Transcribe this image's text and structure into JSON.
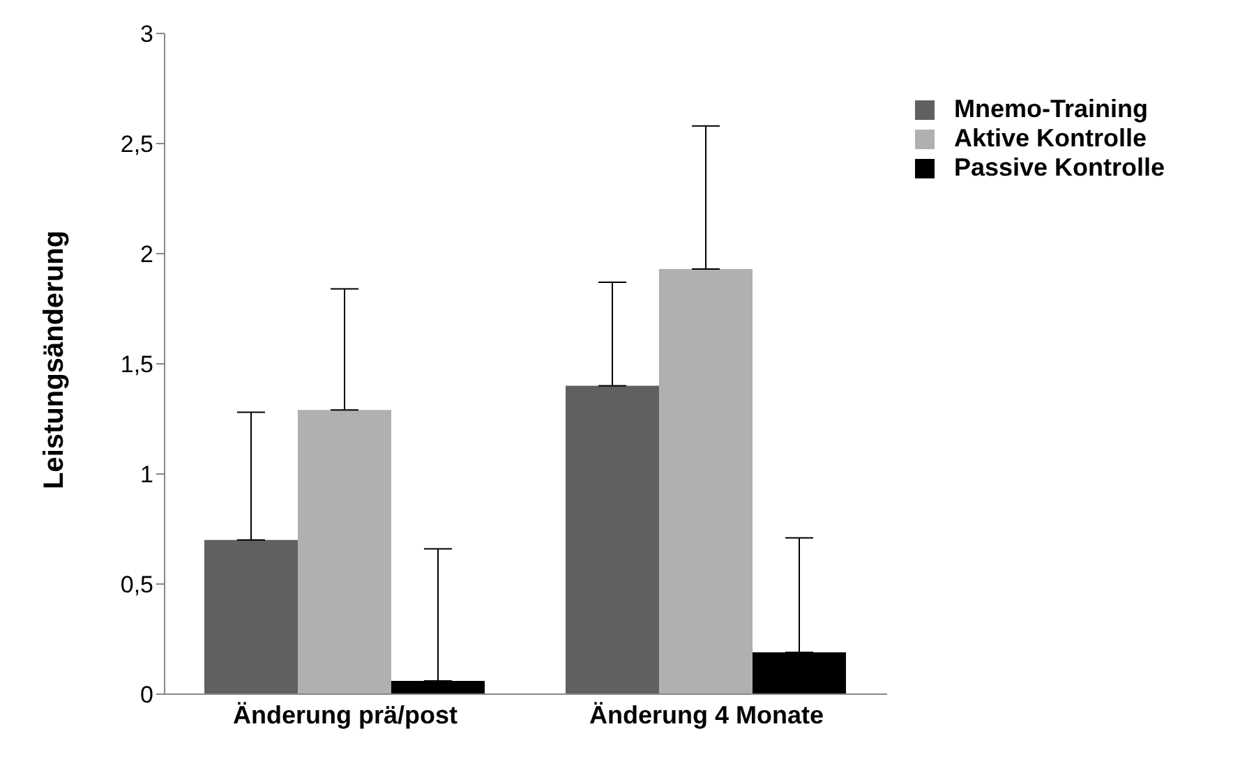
{
  "chart_data": {
    "type": "bar",
    "ylabel": "Leistungsänderung",
    "categories": [
      "Änderung prä/post",
      "Änderung 4 Monate"
    ],
    "series": [
      {
        "name": "Mnemo-Training",
        "color": "#606060",
        "values": [
          0.7,
          1.4
        ],
        "errors": [
          [
            0.7,
            1.28
          ],
          [
            1.4,
            1.87
          ]
        ]
      },
      {
        "name": "Aktive Kontrolle",
        "color": "#b0b0b0",
        "values": [
          1.29,
          1.93
        ],
        "errors": [
          [
            1.29,
            1.84
          ],
          [
            1.93,
            2.58
          ]
        ]
      },
      {
        "name": "Passive Kontrolle",
        "color": "#000000",
        "values": [
          0.06,
          0.19
        ],
        "errors": [
          [
            0.06,
            0.66
          ],
          [
            0.19,
            0.71
          ]
        ]
      }
    ],
    "ylim": [
      0,
      3
    ],
    "yticks": [
      0,
      {
        "value": 0.5,
        "label": "0,5"
      },
      1,
      {
        "value": 1.5,
        "label": "1,5"
      },
      2,
      {
        "value": 2.5,
        "label": "2,5"
      },
      3
    ],
    "grid": false,
    "legend": "right"
  }
}
